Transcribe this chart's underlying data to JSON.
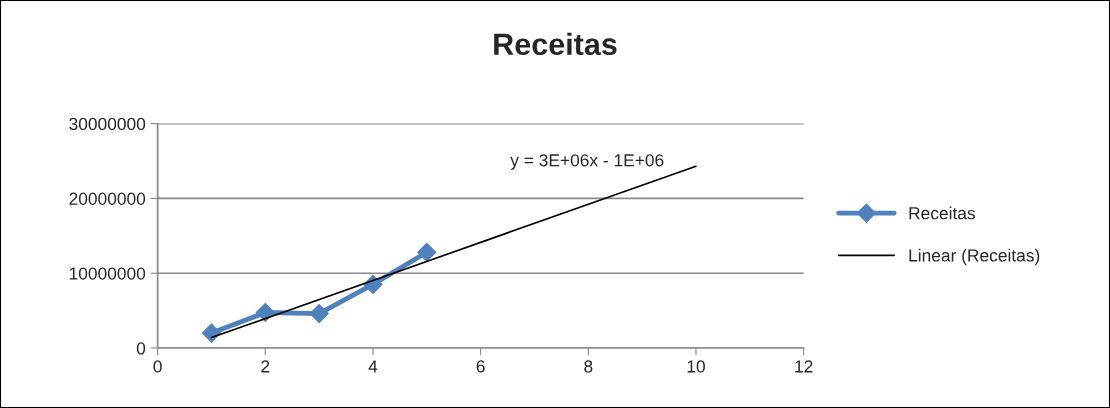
{
  "chart_data": {
    "type": "line",
    "title": "Receitas",
    "xlim": [
      0,
      12
    ],
    "xticks": [
      0,
      2,
      4,
      6,
      8,
      10,
      12
    ],
    "ylim": [
      0,
      30000000
    ],
    "yticks": [
      0,
      10000000,
      20000000,
      30000000
    ],
    "grid": "y",
    "legend": "right",
    "series": [
      {
        "name": "Receitas",
        "color": "#4f81bd",
        "x": [
          1,
          2,
          3,
          4,
          5
        ],
        "values": [
          2000000,
          4750000,
          4600000,
          8500000,
          12800000
        ],
        "marker": "diamond",
        "line_style": "solid"
      },
      {
        "name": "Linear (Receitas)",
        "color": "#000000",
        "x": [
          1,
          10
        ],
        "values": [
          1400000,
          24300000
        ],
        "marker": "none",
        "line_style": "solid"
      }
    ],
    "annotations": [
      "y = 3E+06x - 1E+06"
    ]
  }
}
